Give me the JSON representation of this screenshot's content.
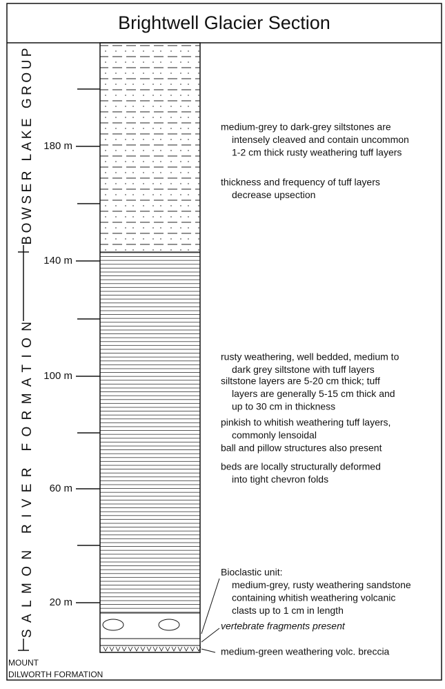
{
  "title": "Brightwell Glacier Section",
  "units": [
    {
      "lines": [
        "BOWSER LAKE GROUP"
      ]
    },
    {
      "lines": [
        "SALMON RIVER FORMATION"
      ]
    },
    {
      "lines": [
        "MOUNT",
        "DILWORTH FORMATION"
      ]
    }
  ],
  "scale": [
    "180 m",
    "140 m",
    "100 m",
    "60 m",
    "20 m"
  ],
  "notes": [
    {
      "lines": [
        "medium-grey to dark-grey siltstones are",
        "intensely cleaved and contain uncommon",
        "1-2 cm thick rusty weathering tuff layers"
      ]
    },
    {
      "lines": [
        "thickness and frequency of tuff layers",
        "decrease upsection"
      ]
    },
    {
      "lines": [
        "rusty weathering, well bedded, medium to",
        "dark grey siltstone with tuff layers"
      ]
    },
    {
      "lines": [
        "siltstone layers are 5-20 cm thick; tuff",
        "layers are generally 5-15 cm thick and",
        "up to 30 cm in thickness"
      ]
    },
    {
      "lines": [
        "pinkish to whitish weathering tuff layers,",
        "commonly lensoidal"
      ]
    },
    {
      "lines": [
        "ball and pillow structures also present"
      ]
    },
    {
      "lines": [
        "beds are locally structurally deformed",
        "into tight chevron folds"
      ]
    },
    {
      "lines": [
        "Bioclastic unit:",
        "medium-grey, rusty weathering sandstone",
        "containing whitish weathering volcanic",
        "clasts up to 1 cm in length"
      ]
    },
    {
      "lines": [
        "vertebrate fragments present"
      ]
    },
    {
      "lines": [
        "medium-green weathering volc. breccia"
      ]
    }
  ]
}
